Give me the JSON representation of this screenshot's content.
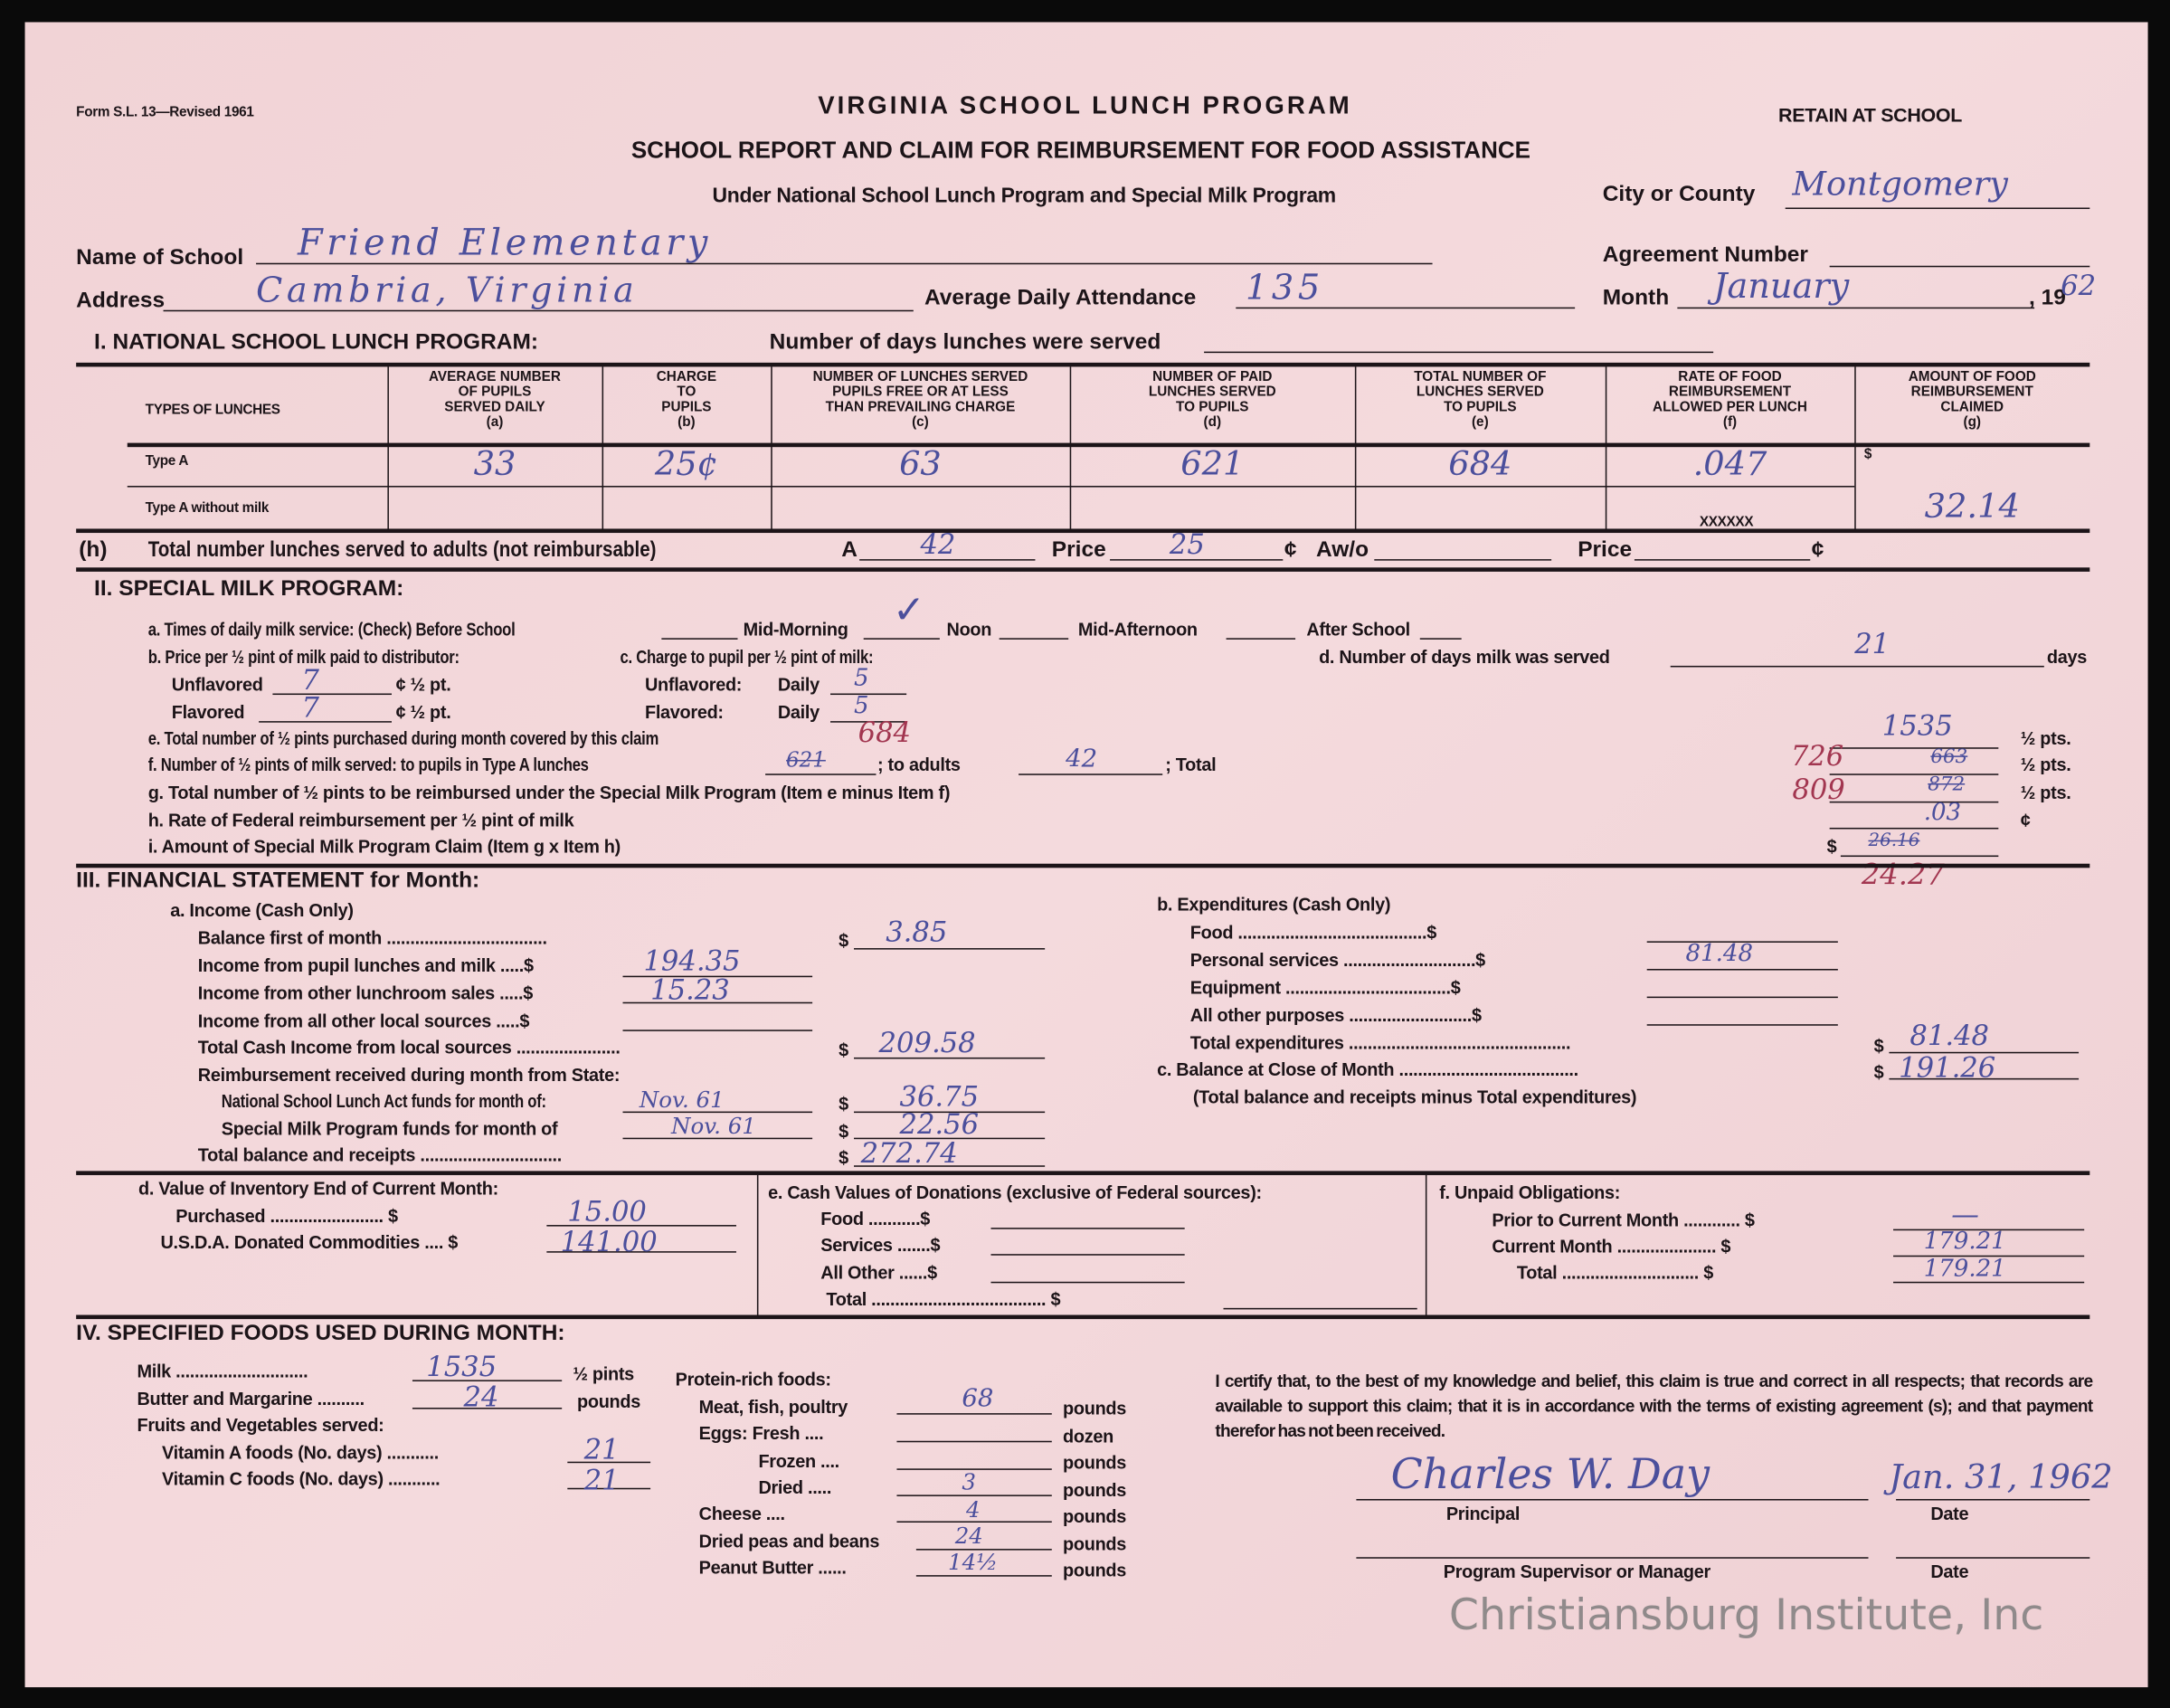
{
  "header": {
    "form_number": "Form S.L. 13—Revised 1961",
    "title": "VIRGINIA SCHOOL LUNCH PROGRAM",
    "subtitle": "SCHOOL REPORT AND CLAIM FOR REIMBURSEMENT FOR FOOD ASSISTANCE",
    "program_line": "Under National School Lunch Program and Special Milk Program",
    "retain": "RETAIN AT SCHOOL",
    "city_label": "City or County",
    "city_value": "Montgomery",
    "school_label": "Name of School",
    "school_value": "Friend Elementary",
    "agreement_label": "Agreement Number",
    "address_label": "Address",
    "address_value": "Cambria, Virginia",
    "attendance_label": "Average Daily Attendance",
    "attendance_value": "135",
    "month_label": "Month",
    "month_value": "January",
    "year_prefix": ", 19",
    "year_value": "62"
  },
  "section1": {
    "heading": "I.   NATIONAL SCHOOL LUNCH PROGRAM:",
    "days_label": "Number of days lunches were served",
    "type_header": "TYPES OF LUNCHES",
    "columns": [
      "AVERAGE NUMBER\nOF PUPILS\nSERVED DAILY\n(a)",
      "CHARGE\nTO\nPUPILS\n(b)",
      "NUMBER OF LUNCHES SERVED\nPUPILS FREE OR AT LESS\nTHAN PREVAILING CHARGE\n(c)",
      "NUMBER OF PAID\nLUNCHES SERVED\nTO PUPILS\n(d)",
      "TOTAL NUMBER OF\nLUNCHES SERVED\nTO PUPILS\n(e)",
      "RATE OF FOOD\nREIMBURSEMENT\nALLOWED PER LUNCH\n(f)",
      "AMOUNT OF FOOD\nREIMBURSEMENT\nCLAIMED\n(g)"
    ],
    "row_type_a": "Type A",
    "row_type_a_no_milk": "Type A without milk",
    "type_a_values": [
      "33",
      "25¢",
      "63",
      "621",
      "684",
      ".047"
    ],
    "xxxxxx": "XXXXXX",
    "dollar": "$",
    "claimed": "32.14",
    "adults": {
      "label": "(h)",
      "text": "Total number lunches served to adults (not reimbursable)",
      "a_label": "A",
      "a_value": "42",
      "price_label": "Price",
      "price_value": "25",
      "cent": "¢",
      "awo_label": "Aw/o",
      "price2_label": "Price",
      "cent2": "¢"
    }
  },
  "section2": {
    "heading": "II.   SPECIAL MILK PROGRAM:",
    "a_text": "a. Times of daily milk service: (Check) Before School",
    "mid_morning": "Mid-Morning",
    "check": "✓",
    "noon": "Noon",
    "mid_afternoon": "Mid-Afternoon",
    "after_school": "After School",
    "b_text": "b. Price per ½ pint of milk paid to distributor:",
    "c_text": "c. Charge to pupil per ½ pint of milk:",
    "d_text": "d. Number of days milk was served",
    "d_value": "21",
    "days": "days",
    "unflavored": "Unflavored",
    "unflavored_value": "7",
    "flavored": "Flavored",
    "flavored_value": "7",
    "half_pt": "¢ ½ pt.",
    "c_unflavored": "Unflavored:",
    "c_flavored": "Flavored:",
    "daily": "Daily",
    "c_unflavored_value": "5",
    "c_flavored_value": "5",
    "e_text": "e. Total number of ½ pints purchased during month covered by this claim",
    "e_note": "684",
    "e_value": "1535",
    "f_text": "f. Number of ½ pints of milk served: to pupils in Type A lunches",
    "f_pupils_struck": "621",
    "f_adults_label": "; to adults",
    "f_adults": "42",
    "f_total_label": "; Total",
    "f_total": "726",
    "f_total_struck": "663",
    "g_text": "g. Total number of ½ pints to be reimbursed under the Special Milk Program (Item e minus Item f)",
    "g_value": "809",
    "g_struck": "872",
    "h_text": "h. Rate of Federal reimbursement per ½ pint of milk",
    "h_value": ".03",
    "i_text": "i. Amount of Special Milk Program Claim (Item g x Item h)",
    "i_struck": "26.16",
    "i_value": "24.27",
    "pts": "½ pts.",
    "cent": "¢",
    "dollar": "$"
  },
  "section3": {
    "heading": "III.   FINANCIAL STATEMENT for Month:",
    "income_heading": "a. Income (Cash Only)",
    "balance_first": "Balance first of month ..................................",
    "balance_first_value": "3.85",
    "pupil_income": "Income from pupil lunches and milk .....$",
    "pupil_income_value": "194.35",
    "other_sales": "Income from other lunchroom sales .....$",
    "other_sales_value": "15.23",
    "other_local": "Income from all other local sources .....$",
    "total_cash": "Total Cash Income from local sources ......................",
    "total_cash_value": "209.58",
    "reimb_heading": "Reimbursement received during month from State:",
    "nsla": "National School Lunch Act funds for month of:",
    "nsla_month": "Nov. 61",
    "nsla_value": "36.75",
    "smp": "Special Milk Program funds for month of",
    "smp_month": "Nov. 61",
    "smp_value": "22.56",
    "total_receipts": "Total balance and receipts ..............................",
    "total_receipts_value": "272.74",
    "exp_heading": "b. Expenditures (Cash Only)",
    "food": "Food ........................................$",
    "personal": "Personal services ............................$",
    "personal_value": "81.48",
    "equipment": "Equipment ...................................$",
    "other_purposes": "All other purposes ..........................$",
    "total_exp": "Total expenditures ...............................................",
    "total_exp_value": "81.48",
    "balance_close": "c. Balance at Close of Month ......................................",
    "balance_close_value": "191.26",
    "balance_note": "(Total balance and receipts minus Total expenditures)",
    "dollar": "$",
    "inventory_heading": "d. Value of Inventory End of Current Month:",
    "purchased": "Purchased ........................ $",
    "purchased_value": "15.00",
    "usda": "U.S.D.A. Donated Commodities .... $",
    "usda_value": "141.00",
    "donations_heading": "e. Cash Values of Donations (exclusive of Federal sources):",
    "don_food": "Food ...........$",
    "don_services": "Services .......$",
    "don_other": "All Other ......$",
    "don_total": "Total ..................................... $",
    "unpaid_heading": "f. Unpaid Obligations:",
    "prior": "Prior to Current Month ............ $",
    "prior_value": "—",
    "current": "Current Month ..................... $",
    "current_value": "179.21",
    "unpaid_total": "Total ............................. $",
    "unpaid_total_value": "179.21"
  },
  "section4": {
    "heading": "IV.   SPECIFIED FOODS USED DURING MONTH:",
    "milk": "Milk ............................",
    "milk_value": "1535",
    "half_pints": "½ pints",
    "butter": "Butter and Margarine ..........",
    "butter_value": "24",
    "pounds": "pounds",
    "dozen": "dozen",
    "fruits": "Fruits and Vegetables served:",
    "vit_a": "Vitamin A foods (No. days) ...........",
    "vit_a_value": "21",
    "vit_c": "Vitamin C foods (No. days) ...........",
    "vit_c_value": "21",
    "protein": "Protein-rich foods:",
    "meat": "Meat, fish, poultry",
    "meat_value": "68",
    "eggs_fresh": "Eggs: Fresh ....",
    "frozen": "Frozen ....",
    "dried": "Dried .....",
    "dried_value": "3",
    "cheese": "Cheese ....",
    "cheese_value": "4",
    "peas": "Dried peas and beans",
    "peas_value": "24",
    "peanut": "Peanut Butter ......",
    "peanut_value": "14½"
  },
  "certification": {
    "text": "I certify that, to the best of my knowledge and belief, this claim is true and correct in all respects; that records are available to support this claim; that it is in accordance with the terms of existing agreement (s); and that payment therefor has not been received.",
    "signature": "Charles W. Day",
    "date_value": "Jan. 31, 1962",
    "principal": "Principal",
    "date_label": "Date",
    "supervisor": "Program Supervisor or Manager",
    "date_label2": "Date"
  },
  "watermark": "Christiansburg Institute, Inc",
  "colors": {
    "paper": "#f2d6d9",
    "ink": "#4b4f9c",
    "red_ink": "#a23650",
    "print": "#1c1418"
  }
}
